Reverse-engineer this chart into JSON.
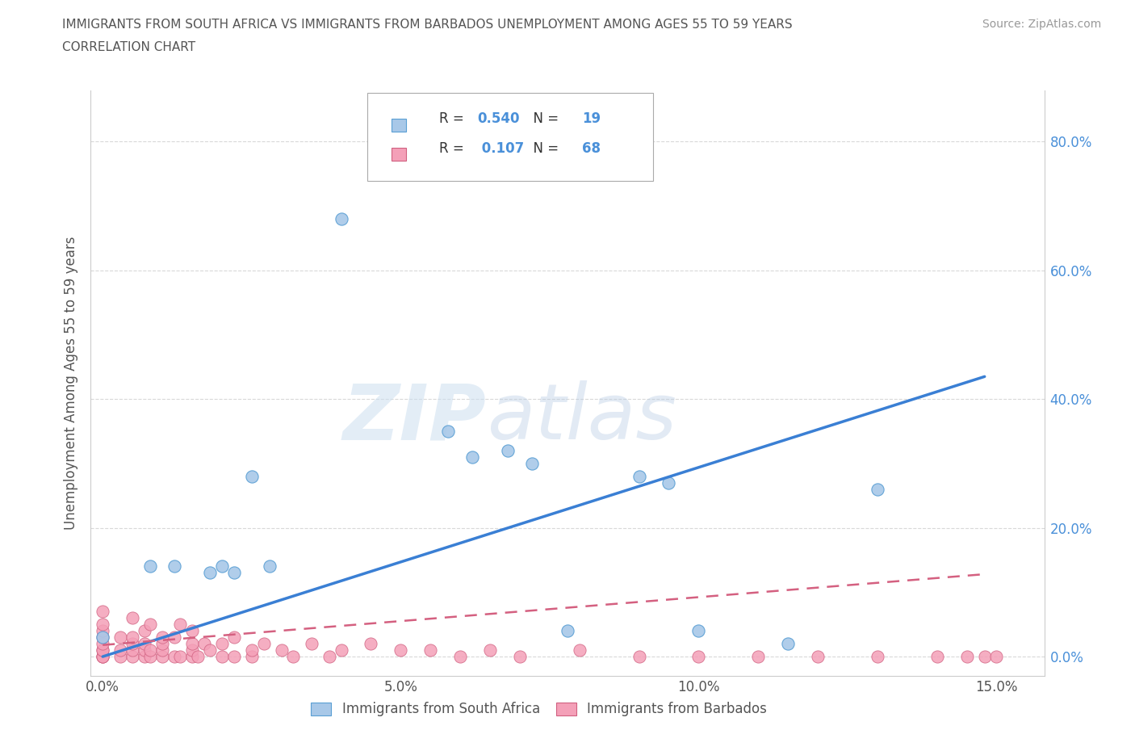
{
  "title_line1": "IMMIGRANTS FROM SOUTH AFRICA VS IMMIGRANTS FROM BARBADOS UNEMPLOYMENT AMONG AGES 55 TO 59 YEARS",
  "title_line2": "CORRELATION CHART",
  "source": "Source: ZipAtlas.com",
  "ylabel": "Unemployment Among Ages 55 to 59 years",
  "xlim": [
    -0.002,
    0.158
  ],
  "ylim": [
    -0.03,
    0.88
  ],
  "xticks": [
    0.0,
    0.05,
    0.1,
    0.15
  ],
  "xtick_labels": [
    "0.0%",
    "5.0%",
    "10.0%",
    "15.0%"
  ],
  "yticks": [
    0.0,
    0.2,
    0.4,
    0.6,
    0.8
  ],
  "ytick_labels": [
    "0.0%",
    "20.0%",
    "40.0%",
    "60.0%",
    "80.0%"
  ],
  "watermark_zip": "ZIP",
  "watermark_atlas": "atlas",
  "legend_r1": "0.540",
  "legend_n1": "19",
  "legend_r2": "0.107",
  "legend_n2": "68",
  "color_sa_face": "#a8c8e8",
  "color_sa_edge": "#5a9fd4",
  "color_barb_face": "#f4a0b8",
  "color_barb_edge": "#d06080",
  "color_line_sa": "#3a7fd4",
  "color_line_barb": "#d46080",
  "color_grid": "#d8d8d8",
  "color_text": "#555555",
  "color_axis_blue": "#4a90d9",
  "background_color": "#ffffff",
  "sa_x": [
    0.0,
    0.008,
    0.012,
    0.018,
    0.02,
    0.022,
    0.025,
    0.028,
    0.04,
    0.058,
    0.062,
    0.068,
    0.072,
    0.078,
    0.09,
    0.095,
    0.1,
    0.115,
    0.13
  ],
  "sa_y": [
    0.03,
    0.14,
    0.14,
    0.13,
    0.14,
    0.13,
    0.28,
    0.14,
    0.68,
    0.35,
    0.31,
    0.32,
    0.3,
    0.04,
    0.28,
    0.27,
    0.04,
    0.02,
    0.26
  ],
  "barb_x": [
    0.0,
    0.0,
    0.0,
    0.0,
    0.0,
    0.0,
    0.0,
    0.0,
    0.0,
    0.0,
    0.003,
    0.003,
    0.003,
    0.005,
    0.005,
    0.005,
    0.005,
    0.005,
    0.007,
    0.007,
    0.007,
    0.007,
    0.008,
    0.008,
    0.008,
    0.01,
    0.01,
    0.01,
    0.01,
    0.012,
    0.012,
    0.013,
    0.013,
    0.015,
    0.015,
    0.015,
    0.015,
    0.016,
    0.017,
    0.018,
    0.02,
    0.02,
    0.022,
    0.022,
    0.025,
    0.025,
    0.027,
    0.03,
    0.032,
    0.035,
    0.038,
    0.04,
    0.045,
    0.05,
    0.055,
    0.06,
    0.065,
    0.07,
    0.08,
    0.09,
    0.1,
    0.11,
    0.12,
    0.13,
    0.14,
    0.145,
    0.148,
    0.15
  ],
  "barb_y": [
    0.0,
    0.0,
    0.0,
    0.01,
    0.01,
    0.02,
    0.03,
    0.04,
    0.05,
    0.07,
    0.0,
    0.01,
    0.03,
    0.0,
    0.01,
    0.02,
    0.03,
    0.06,
    0.0,
    0.01,
    0.02,
    0.04,
    0.0,
    0.01,
    0.05,
    0.0,
    0.01,
    0.02,
    0.03,
    0.0,
    0.03,
    0.0,
    0.05,
    0.0,
    0.01,
    0.02,
    0.04,
    0.0,
    0.02,
    0.01,
    0.0,
    0.02,
    0.0,
    0.03,
    0.0,
    0.01,
    0.02,
    0.01,
    0.0,
    0.02,
    0.0,
    0.01,
    0.02,
    0.01,
    0.01,
    0.0,
    0.01,
    0.0,
    0.01,
    0.0,
    0.0,
    0.0,
    0.0,
    0.0,
    0.0,
    0.0,
    0.0,
    0.0
  ],
  "sa_line_x0": 0.0,
  "sa_line_x1": 0.148,
  "sa_line_y0": 0.0,
  "sa_line_y1": 0.435,
  "barb_line_x0": 0.0,
  "barb_line_x1": 0.148,
  "barb_line_y0": 0.018,
  "barb_line_y1": 0.128,
  "legend_label1": "Immigrants from South Africa",
  "legend_label2": "Immigrants from Barbados"
}
